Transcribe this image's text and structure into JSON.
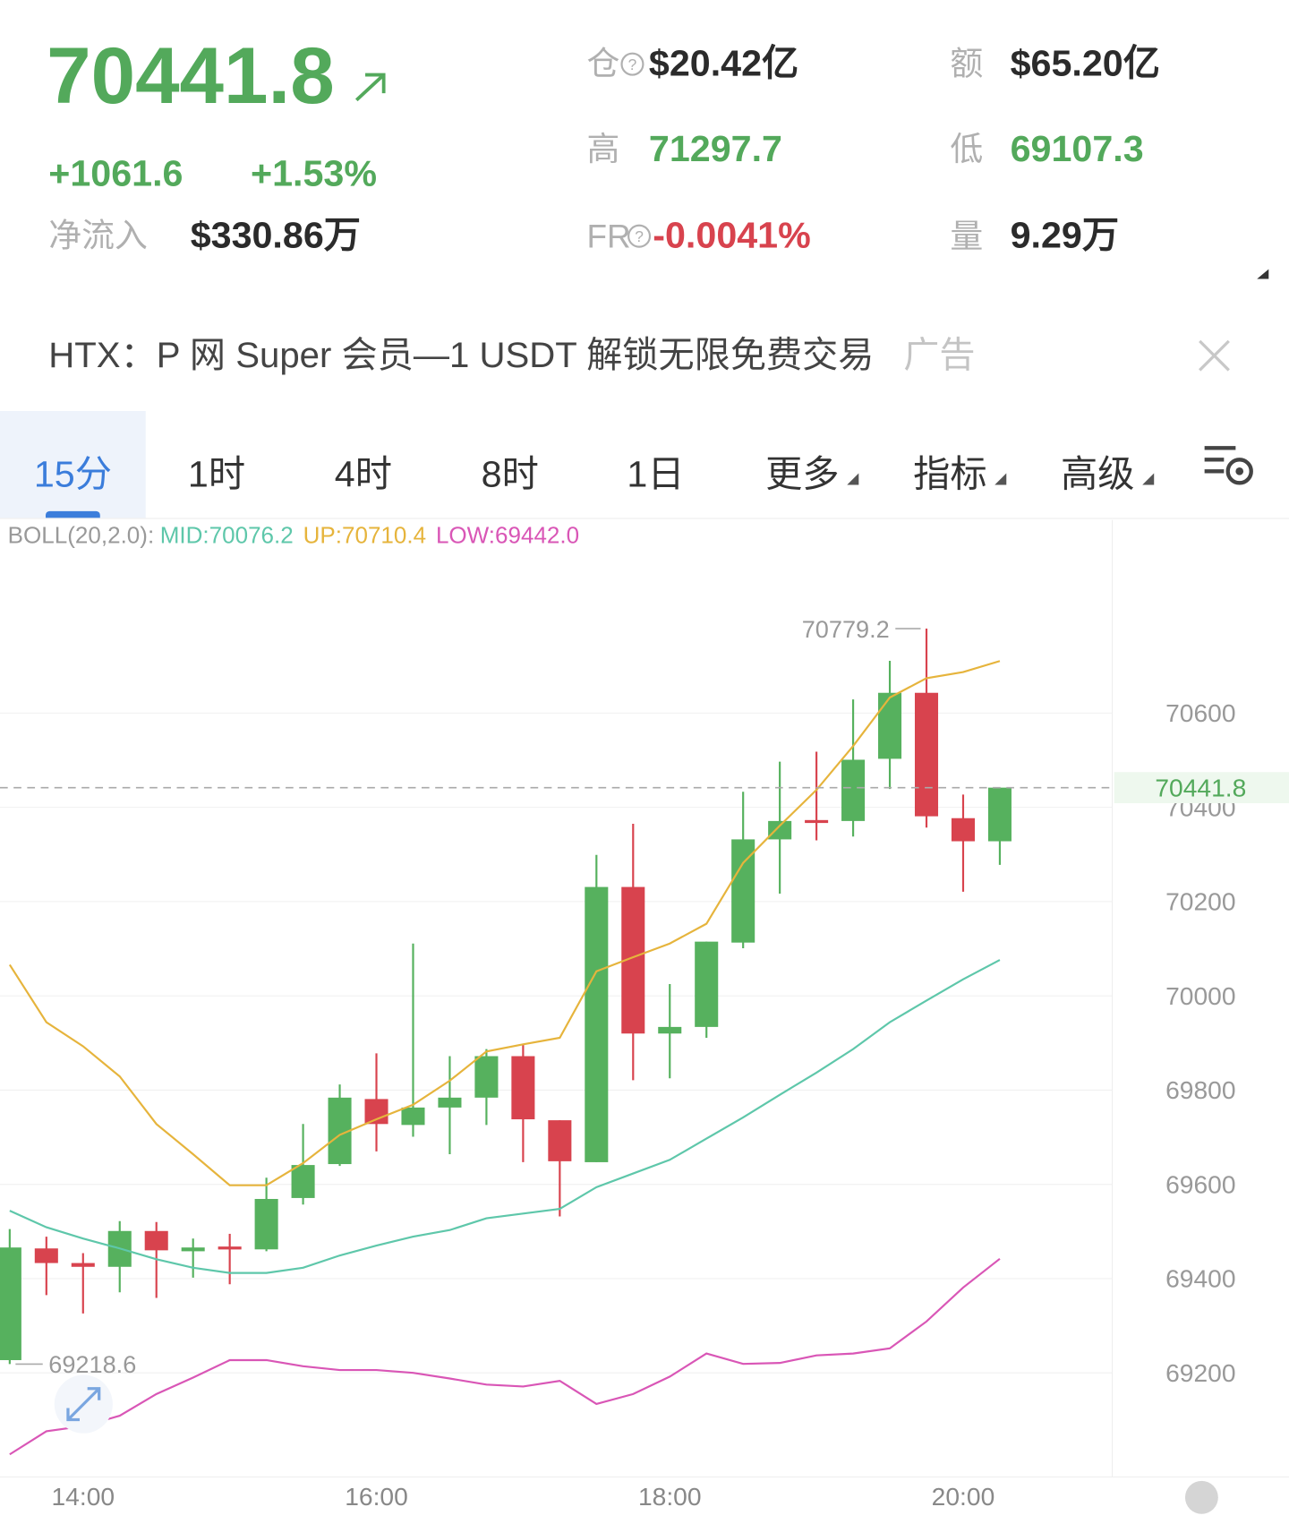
{
  "header": {
    "price": "70441.8",
    "change": "+1061.6",
    "change_pct": "+1.53%",
    "net_inflow_label": "净流入",
    "net_inflow": "$330.86万",
    "stats": [
      {
        "label": "仓",
        "value": "$20.42亿"
      },
      {
        "label": "额",
        "value": "$65.20亿"
      },
      {
        "label": "高",
        "value": "71297.7"
      },
      {
        "label": "低",
        "value": "69107.3"
      },
      {
        "label": "FR",
        "value": "-0.0041%"
      },
      {
        "label": "量",
        "value": "9.29万"
      }
    ]
  },
  "ad": {
    "text": "HTX：P 网 Super 会员—1 USDT 解锁无限免费交易",
    "tag": "广告"
  },
  "tabs": [
    "15分",
    "1时",
    "4时",
    "8时",
    "1日",
    "更多",
    "指标",
    "高级"
  ],
  "chart_data": {
    "type": "candlestick",
    "indicator": "BOLL(20,2.0):",
    "categories": [
      null,
      null,
      "14:00",
      null,
      null,
      null,
      null,
      null,
      null,
      null,
      "16:00",
      null,
      null,
      null,
      null,
      null,
      null,
      null,
      "18:00",
      null,
      null,
      null,
      null,
      null,
      null,
      null,
      "20:00",
      null
    ],
    "open": [
      69227,
      69464,
      69433,
      69425,
      69501,
      69458,
      69468,
      69462,
      69571,
      69643,
      69781,
      69726,
      69763,
      69784,
      69872,
      69736,
      69647,
      70231,
      69920,
      69934,
      70113,
      70332,
      70373,
      70371,
      70503,
      70643,
      70377,
      70328
    ],
    "high": [
      69505,
      69489,
      69454,
      69522,
      69520,
      69485,
      69495,
      69614,
      69728,
      69812,
      69878,
      70111,
      69872,
      69887,
      69897,
      69736,
      70299,
      70365,
      70025,
      70115,
      70433,
      70497,
      70518,
      70629,
      70711,
      70779.2,
      70427,
      70441.8
    ],
    "low": [
      69218.6,
      69365,
      69326,
      69371,
      69359,
      69402,
      69388,
      69458,
      69557,
      69639,
      69670,
      69701,
      69664,
      69726,
      69647,
      69532,
      69647,
      69821,
      69825,
      69911,
      70101,
      70217,
      70330,
      70338,
      70439,
      70357,
      70221,
      70278
    ],
    "close": [
      69466,
      69433,
      69425,
      69501,
      69460,
      69466,
      69462,
      69569,
      69641,
      69784,
      69728,
      69763,
      69784,
      69872,
      69738,
      69649,
      70231,
      69920,
      69934,
      70115,
      70332,
      70371,
      70369,
      70501,
      70643,
      70381,
      70328,
      70441.8
    ],
    "up_color": "#56b15e",
    "down_color": "#d8434e",
    "series": [
      {
        "name": "MID",
        "legend": "MID:70076.2",
        "color": "#5ec7aa",
        "values": [
          69544,
          69509,
          69485,
          69464,
          69441,
          69423,
          69412,
          69412,
          69423,
          69449,
          69470,
          69489,
          69503,
          69528,
          69538,
          69548,
          69594,
          69623,
          69652,
          69697,
          69742,
          69790,
          69837,
          69887,
          69944,
          69990,
          70035,
          70076.2
        ]
      },
      {
        "name": "UP",
        "legend": "UP:70710.4",
        "color": "#e6b43c",
        "values": [
          70066,
          69944,
          69893,
          69829,
          69728,
          69664,
          69598,
          69598,
          69645,
          69705,
          69738,
          69769,
          69820,
          69882,
          69897,
          69911,
          70052,
          70082,
          70111,
          70153,
          70282,
          70361,
          70437,
          70530,
          70633,
          70674,
          70687,
          70710.4
        ]
      },
      {
        "name": "LOW",
        "legend": "LOW:69442.0",
        "color": "#d956b6",
        "values": [
          69027,
          69076,
          69087,
          69109,
          69155,
          69190,
          69227,
          69227,
          69214,
          69206,
          69206,
          69200,
          69188,
          69175,
          69171,
          69183,
          69134,
          69155,
          69192,
          69241,
          69219,
          69221,
          69237,
          69241,
          69252,
          69309,
          69381,
          69442
        ]
      }
    ],
    "ylim": [
      68979,
      71010
    ],
    "yticks": [
      69200,
      69400,
      69600,
      69800,
      70000,
      70200,
      70400,
      70600
    ],
    "grid": true,
    "current_price": 70441.8,
    "high_marker": 70779.2,
    "low_marker": 69218.6
  }
}
